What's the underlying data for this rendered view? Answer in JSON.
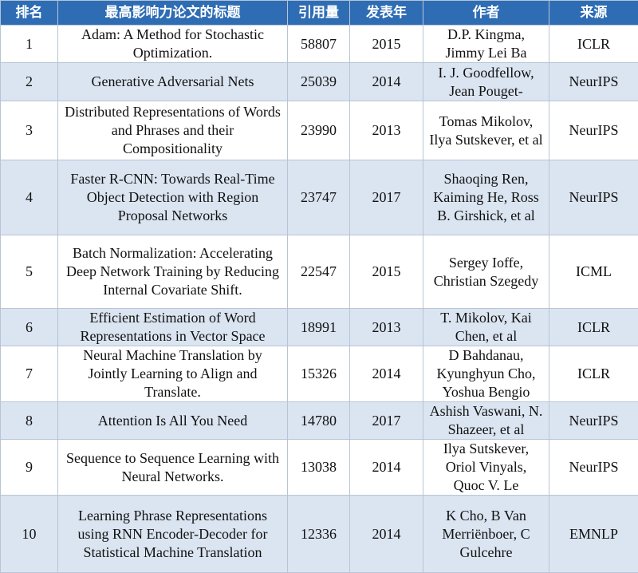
{
  "table": {
    "header": [
      "排名",
      "最高影响力论文的标题",
      "引用量",
      "发表年",
      "作者",
      "来源"
    ],
    "rows": [
      [
        1,
        "Adam: A Method for Stochastic Optimization.",
        58807,
        2015,
        "D.P. Kingma, Jimmy Lei Ba",
        "ICLR"
      ],
      [
        2,
        "Generative Adversarial Nets",
        25039,
        2014,
        "I. J. Goodfellow, Jean Pouget-",
        "NeurIPS"
      ],
      [
        3,
        "Distributed Representations of Words and Phrases and their Compositionality",
        23990,
        2013,
        "Tomas Mikolov, Ilya Sutskever, et al",
        "NeurIPS"
      ],
      [
        4,
        "Faster R-CNN: Towards Real-Time Object Detection with Region Proposal Networks",
        23747,
        2017,
        "Shaoqing Ren, Kaiming He, Ross B. Girshick, et al",
        "NeurIPS"
      ],
      [
        5,
        "Batch Normalization: Accelerating Deep Network Training by Reducing Internal Covariate Shift.",
        22547,
        2015,
        "Sergey Ioffe, Christian Szegedy",
        "ICML"
      ],
      [
        6,
        "Efficient Estimation of Word Representations in Vector Space",
        18991,
        2013,
        "T. Mikolov, Kai Chen, et al",
        "ICLR"
      ],
      [
        7,
        "Neural Machine Translation by Jointly Learning to Align and Translate.",
        15326,
        2014,
        "D Bahdanau, Kyunghyun Cho, Yoshua Bengio",
        "ICLR"
      ],
      [
        8,
        "Attention Is All You Need",
        14780,
        2017,
        "Ashish Vaswani, N. Shazeer, et al",
        "NeurIPS"
      ],
      [
        9,
        "Sequence to Sequence Learning with Neural Networks.",
        13038,
        2014,
        "Ilya Sutskever, Oriol Vinyals, Quoc V. Le",
        "NeurIPS"
      ],
      [
        10,
        "Learning Phrase Representations using RNN Encoder-Decoder for Statistical Machine Translation",
        12336,
        2014,
        "K Cho, B Van Merriënboer, C Gulcehre",
        "EMNLP"
      ]
    ]
  }
}
